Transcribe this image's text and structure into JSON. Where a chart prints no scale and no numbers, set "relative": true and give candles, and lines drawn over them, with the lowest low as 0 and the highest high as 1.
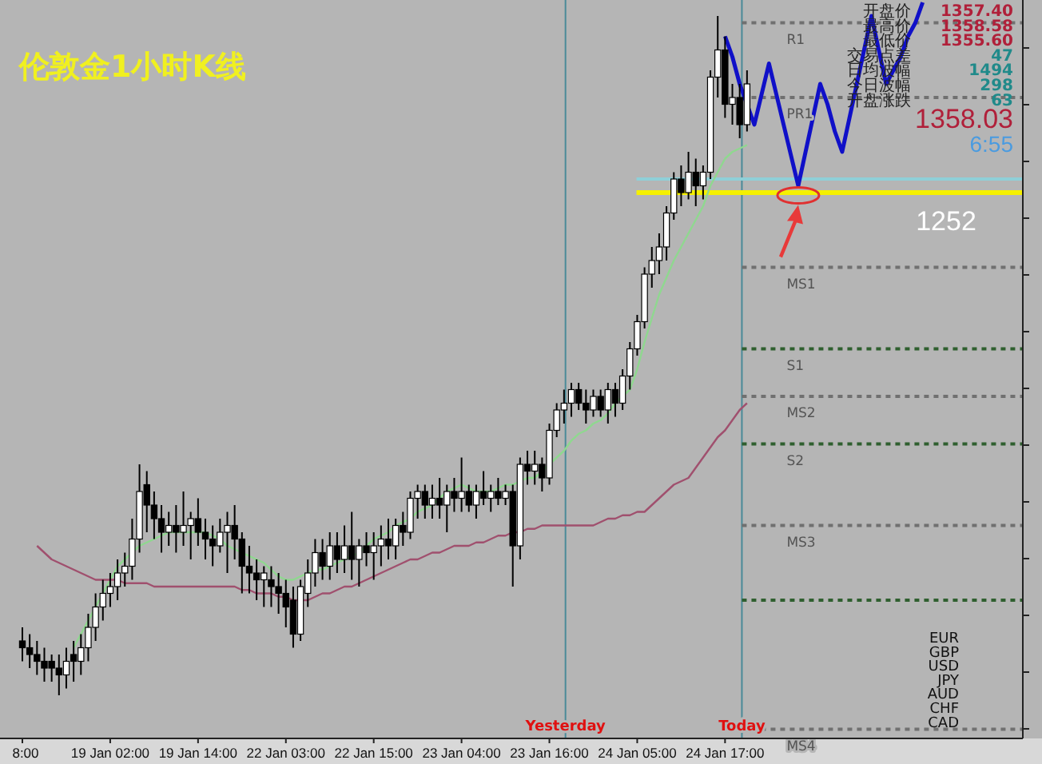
{
  "chart_data": {
    "type": "candlestick",
    "title": "伦敦金1小时K线",
    "relative": true,
    "categories": [
      "8:00",
      null,
      null,
      null,
      null,
      null,
      null,
      null,
      null,
      null,
      null,
      null,
      "19 Jan 02:00",
      null,
      null,
      null,
      null,
      null,
      null,
      null,
      null,
      null,
      null,
      null,
      "19 Jan 14:00",
      null,
      null,
      null,
      null,
      null,
      null,
      null,
      null,
      null,
      null,
      null,
      "22 Jan 03:00",
      null,
      null,
      null,
      null,
      null,
      null,
      null,
      null,
      null,
      null,
      null,
      "22 Jan 15:00",
      null,
      null,
      null,
      null,
      null,
      null,
      null,
      null,
      null,
      null,
      null,
      "23 Jan 04:00",
      null,
      null,
      null,
      null,
      null,
      null,
      null,
      null,
      null,
      null,
      null,
      "23 Jan 16:00",
      null,
      null,
      null,
      null,
      null,
      null,
      null,
      null,
      null,
      null,
      null,
      "24 Jan 05:00",
      null,
      null,
      null,
      null,
      null,
      null,
      null,
      null,
      null,
      null,
      null,
      "24 Jan 17:00",
      null,
      null,
      null,
      null,
      null,
      null,
      null,
      null,
      null,
      null,
      null,
      null,
      null,
      null,
      null,
      null,
      null,
      null,
      null,
      null,
      null,
      null,
      null,
      null,
      null,
      null,
      null,
      null,
      null,
      null,
      null,
      null,
      null,
      null,
      null,
      null,
      null,
      null,
      null,
      null
    ],
    "ohlc": [
      [
        0.08,
        0.1,
        0.05,
        0.07
      ],
      [
        0.07,
        0.09,
        0.04,
        0.06
      ],
      [
        0.06,
        0.08,
        0.03,
        0.05
      ],
      [
        0.05,
        0.07,
        0.02,
        0.04
      ],
      [
        0.05,
        0.06,
        0.02,
        0.04
      ],
      [
        0.04,
        0.06,
        0.0,
        0.03
      ],
      [
        0.03,
        0.07,
        0.01,
        0.05
      ],
      [
        0.06,
        0.08,
        0.02,
        0.05
      ],
      [
        0.05,
        0.09,
        0.03,
        0.07
      ],
      [
        0.07,
        0.12,
        0.05,
        0.1
      ],
      [
        0.1,
        0.15,
        0.08,
        0.13
      ],
      [
        0.13,
        0.17,
        0.11,
        0.15
      ],
      [
        0.15,
        0.18,
        0.13,
        0.16
      ],
      [
        0.16,
        0.2,
        0.14,
        0.18
      ],
      [
        0.18,
        0.21,
        0.16,
        0.19
      ],
      [
        0.19,
        0.26,
        0.17,
        0.23
      ],
      [
        0.23,
        0.34,
        0.21,
        0.3
      ],
      [
        0.31,
        0.33,
        0.24,
        0.28
      ],
      [
        0.28,
        0.3,
        0.23,
        0.26
      ],
      [
        0.26,
        0.28,
        0.21,
        0.24
      ],
      [
        0.24,
        0.27,
        0.22,
        0.25
      ],
      [
        0.25,
        0.28,
        0.21,
        0.24
      ],
      [
        0.24,
        0.3,
        0.22,
        0.25
      ],
      [
        0.25,
        0.27,
        0.2,
        0.26
      ],
      [
        0.26,
        0.29,
        0.22,
        0.24
      ],
      [
        0.24,
        0.26,
        0.2,
        0.23
      ],
      [
        0.23,
        0.25,
        0.19,
        0.22
      ],
      [
        0.22,
        0.26,
        0.21,
        0.24
      ],
      [
        0.24,
        0.27,
        0.18,
        0.25
      ],
      [
        0.25,
        0.28,
        0.2,
        0.23
      ],
      [
        0.23,
        0.24,
        0.15,
        0.19
      ],
      [
        0.19,
        0.22,
        0.15,
        0.18
      ],
      [
        0.18,
        0.2,
        0.14,
        0.17
      ],
      [
        0.17,
        0.19,
        0.13,
        0.18
      ],
      [
        0.17,
        0.19,
        0.13,
        0.16
      ],
      [
        0.16,
        0.18,
        0.12,
        0.15
      ],
      [
        0.15,
        0.17,
        0.1,
        0.13
      ],
      [
        0.14,
        0.16,
        0.07,
        0.09
      ],
      [
        0.09,
        0.17,
        0.08,
        0.16
      ],
      [
        0.15,
        0.2,
        0.13,
        0.18
      ],
      [
        0.18,
        0.23,
        0.16,
        0.21
      ],
      [
        0.21,
        0.23,
        0.17,
        0.19
      ],
      [
        0.19,
        0.24,
        0.17,
        0.22
      ],
      [
        0.22,
        0.24,
        0.18,
        0.2
      ],
      [
        0.2,
        0.25,
        0.18,
        0.22
      ],
      [
        0.22,
        0.27,
        0.17,
        0.2
      ],
      [
        0.2,
        0.23,
        0.16,
        0.22
      ],
      [
        0.22,
        0.24,
        0.19,
        0.21
      ],
      [
        0.21,
        0.24,
        0.17,
        0.22
      ],
      [
        0.22,
        0.25,
        0.19,
        0.23
      ],
      [
        0.23,
        0.26,
        0.2,
        0.22
      ],
      [
        0.22,
        0.26,
        0.2,
        0.25
      ],
      [
        0.25,
        0.27,
        0.22,
        0.24
      ],
      [
        0.24,
        0.3,
        0.23,
        0.29
      ],
      [
        0.29,
        0.31,
        0.26,
        0.3
      ],
      [
        0.3,
        0.31,
        0.26,
        0.28
      ],
      [
        0.28,
        0.31,
        0.26,
        0.29
      ],
      [
        0.29,
        0.32,
        0.26,
        0.28
      ],
      [
        0.28,
        0.31,
        0.24,
        0.3
      ],
      [
        0.3,
        0.32,
        0.27,
        0.29
      ],
      [
        0.29,
        0.35,
        0.27,
        0.3
      ],
      [
        0.3,
        0.31,
        0.27,
        0.28
      ],
      [
        0.28,
        0.31,
        0.26,
        0.3
      ],
      [
        0.3,
        0.33,
        0.28,
        0.29
      ],
      [
        0.29,
        0.31,
        0.27,
        0.3
      ],
      [
        0.3,
        0.32,
        0.28,
        0.29
      ],
      [
        0.29,
        0.31,
        0.28,
        0.3
      ],
      [
        0.3,
        0.31,
        0.16,
        0.22
      ],
      [
        0.22,
        0.35,
        0.2,
        0.34
      ],
      [
        0.34,
        0.36,
        0.31,
        0.33
      ],
      [
        0.33,
        0.36,
        0.31,
        0.34
      ],
      [
        0.34,
        0.35,
        0.3,
        0.32
      ],
      [
        0.32,
        0.4,
        0.31,
        0.39
      ],
      [
        0.39,
        0.43,
        0.38,
        0.42
      ],
      [
        0.42,
        0.45,
        0.4,
        0.43
      ],
      [
        0.43,
        0.46,
        0.41,
        0.45
      ],
      [
        0.45,
        0.46,
        0.42,
        0.43
      ],
      [
        0.43,
        0.45,
        0.4,
        0.42
      ],
      [
        0.42,
        0.45,
        0.41,
        0.44
      ],
      [
        0.44,
        0.45,
        0.41,
        0.42
      ],
      [
        0.42,
        0.46,
        0.4,
        0.45
      ],
      [
        0.45,
        0.46,
        0.41,
        0.43
      ],
      [
        0.43,
        0.48,
        0.42,
        0.47
      ],
      [
        0.47,
        0.52,
        0.45,
        0.51
      ],
      [
        0.51,
        0.56,
        0.5,
        0.55
      ],
      [
        0.55,
        0.63,
        0.54,
        0.62
      ],
      [
        0.62,
        0.66,
        0.6,
        0.64
      ],
      [
        0.64,
        0.68,
        0.62,
        0.66
      ],
      [
        0.66,
        0.72,
        0.64,
        0.71
      ],
      [
        0.71,
        0.77,
        0.7,
        0.76
      ],
      [
        0.76,
        0.78,
        0.72,
        0.74
      ],
      [
        0.74,
        0.8,
        0.73,
        0.77
      ],
      [
        0.77,
        0.79,
        0.72,
        0.75
      ],
      [
        0.75,
        0.78,
        0.73,
        0.77
      ],
      [
        0.77,
        0.92,
        0.76,
        0.91
      ],
      [
        0.91,
        1.0,
        0.88,
        0.95
      ],
      [
        0.95,
        0.97,
        0.85,
        0.87
      ],
      [
        0.87,
        0.9,
        0.84,
        0.88
      ],
      [
        0.88,
        0.9,
        0.82,
        0.84
      ],
      [
        0.84,
        0.92,
        0.83,
        0.9
      ],
      null,
      null,
      null,
      null,
      null,
      null,
      null,
      null,
      null,
      null,
      null,
      null,
      null,
      null,
      null,
      null,
      null,
      null,
      null,
      null,
      null,
      null,
      null,
      null,
      null,
      null,
      null,
      null,
      null,
      null,
      null,
      null,
      null,
      null,
      null,
      null,
      null
    ],
    "series": [
      {
        "type": "line",
        "color": "#8fd88f",
        "values": [
          null,
          null,
          null,
          null,
          null,
          null,
          null,
          0.07,
          0.09,
          0.11,
          0.13,
          0.15,
          0.17,
          0.19,
          0.2,
          0.21,
          0.22,
          0.225,
          0.23,
          0.235,
          0.24,
          0.24,
          0.24,
          0.24,
          0.24,
          0.24,
          0.235,
          0.23,
          0.22,
          0.215,
          0.21,
          0.205,
          0.2,
          0.195,
          0.185,
          0.175,
          0.17,
          0.17,
          0.175,
          0.18,
          0.185,
          0.185,
          0.19,
          0.195,
          0.2,
          0.205,
          0.21,
          0.22,
          0.23,
          0.235,
          0.24,
          0.25,
          0.255,
          0.26,
          0.27,
          0.275,
          0.28,
          0.29,
          0.3,
          0.305,
          0.31,
          0.305,
          0.3,
          0.3,
          0.3,
          0.305,
          0.31,
          0.31,
          0.315,
          0.32,
          0.32,
          0.33,
          0.34,
          0.35,
          0.36,
          0.375,
          0.385,
          0.39,
          0.4,
          0.405,
          0.415,
          0.43,
          0.44,
          0.45,
          0.48,
          0.52,
          0.555,
          0.59,
          0.615,
          0.64,
          0.66,
          0.68,
          0.7,
          0.72,
          0.75,
          0.77,
          0.79,
          0.8,
          0.805,
          0.81,
          null,
          null,
          null,
          null,
          null,
          null,
          null,
          null,
          null,
          null,
          null,
          null,
          null,
          null,
          null,
          null,
          null,
          null,
          null,
          null,
          null,
          null,
          null,
          null,
          null,
          null,
          null,
          null,
          null,
          null,
          null,
          null,
          null,
          null,
          null,
          null,
          null
        ]
      },
      {
        "type": "line",
        "color": "#a0506e",
        "values": [
          null,
          null,
          0.22,
          0.21,
          0.2,
          0.195,
          0.19,
          0.185,
          0.18,
          0.175,
          0.17,
          0.17,
          0.17,
          0.17,
          0.165,
          0.165,
          0.165,
          0.165,
          0.16,
          0.16,
          0.16,
          0.16,
          0.16,
          0.16,
          0.16,
          0.16,
          0.16,
          0.16,
          0.16,
          0.16,
          0.155,
          0.155,
          0.15,
          0.15,
          0.15,
          0.145,
          0.145,
          0.14,
          0.14,
          0.14,
          0.145,
          0.15,
          0.15,
          0.155,
          0.16,
          0.16,
          0.165,
          0.17,
          0.175,
          0.18,
          0.185,
          0.19,
          0.195,
          0.2,
          0.2,
          0.205,
          0.21,
          0.21,
          0.215,
          0.22,
          0.22,
          0.22,
          0.225,
          0.225,
          0.23,
          0.235,
          0.235,
          0.24,
          0.24,
          0.245,
          0.245,
          0.25,
          0.25,
          0.25,
          0.25,
          0.25,
          0.25,
          0.25,
          0.25,
          0.255,
          0.26,
          0.26,
          0.265,
          0.265,
          0.27,
          0.27,
          0.28,
          0.29,
          0.3,
          0.31,
          0.315,
          0.32,
          0.335,
          0.35,
          0.365,
          0.38,
          0.39,
          0.405,
          0.42,
          0.43,
          null,
          null,
          null,
          null,
          null,
          null,
          null,
          null,
          null,
          null,
          null,
          null,
          null,
          null,
          null,
          null,
          null,
          null,
          null,
          null,
          null,
          null,
          null,
          null,
          null,
          null,
          null,
          null,
          null,
          null,
          null,
          null,
          null,
          null,
          null,
          null,
          null
        ]
      },
      {
        "type": "line",
        "color": "#1010c8",
        "values": [
          null,
          null,
          null,
          null,
          null,
          null,
          null,
          null,
          null,
          null,
          null,
          null,
          null,
          null,
          null,
          null,
          null,
          null,
          null,
          null,
          null,
          null,
          null,
          null,
          null,
          null,
          null,
          null,
          null,
          null,
          null,
          null,
          null,
          null,
          null,
          null,
          null,
          null,
          null,
          null,
          null,
          null,
          null,
          null,
          null,
          null,
          null,
          null,
          null,
          null,
          null,
          null,
          null,
          null,
          null,
          null,
          null,
          null,
          null,
          null,
          null,
          null,
          null,
          null,
          null,
          null,
          null,
          null,
          null,
          null,
          null,
          null,
          null,
          null,
          null,
          null,
          null,
          null,
          null,
          null,
          null,
          null,
          null,
          null,
          null,
          null,
          null,
          null,
          null,
          null,
          null,
          null,
          null,
          null,
          null,
          null,
          0.97,
          0.94,
          0.9,
          0.87,
          0.84,
          0.885,
          0.93,
          0.885,
          0.84,
          0.795,
          0.75,
          0.8,
          0.85,
          0.9,
          0.87,
          0.83,
          0.8,
          0.85,
          0.9,
          0.95,
          1.0,
          0.95,
          0.9,
          0.92,
          0.94,
          0.97,
          0.99,
          1.02,
          null,
          null,
          null,
          null,
          null,
          null,
          null,
          null,
          null,
          null,
          null,
          null,
          null
        ]
      }
    ],
    "ref_lines": [
      {
        "axis": "y",
        "value": 0.99,
        "label": "R1",
        "color": "#707070",
        "line_style": "dashed"
      },
      {
        "axis": "y",
        "value": 0.88,
        "label": "PR1",
        "color": "#707070",
        "line_style": "dashed"
      },
      {
        "axis": "y",
        "value": 0.76,
        "color": "#8fd0d8",
        "line_style": "solid"
      },
      {
        "axis": "y",
        "value": 0.74,
        "color": "#f5f000",
        "line_style": "solid"
      },
      {
        "axis": "y",
        "value": 0.63,
        "label": "MS1",
        "color": "#707070",
        "line_style": "dashed"
      },
      {
        "axis": "y",
        "value": 0.51,
        "label": "S1",
        "color": "#2f5f2f",
        "line_style": "dashed"
      },
      {
        "axis": "y",
        "value": 0.44,
        "label": "MS2",
        "color": "#707070",
        "line_style": "dashed"
      },
      {
        "axis": "y",
        "value": 0.37,
        "label": "S2",
        "color": "#2f5f2f",
        "line_style": "dashed"
      },
      {
        "axis": "y",
        "value": 0.25,
        "label": "MS3",
        "color": "#707070",
        "line_style": "dashed"
      },
      {
        "axis": "y",
        "value": 0.14,
        "color": "#2f5f2f",
        "line_style": "dashed"
      },
      {
        "axis": "y",
        "value": -0.05,
        "label": "MS4",
        "color": "#707070",
        "line_style": "dashed"
      }
    ],
    "annotations": [
      "1358.03",
      "6:55",
      "开盘价",
      "最高价",
      "最低价",
      "交易点差",
      "日均波幅",
      "今日波幅",
      "开盘涨跌",
      "1357.40",
      "1358.58",
      "1355.60",
      "47",
      "1494",
      "298",
      "63",
      "EUR",
      "GBP",
      "USD",
      "JPY",
      "AUD",
      "CHF",
      "CAD",
      "1252",
      "Yesterday",
      "Today"
    ]
  }
}
